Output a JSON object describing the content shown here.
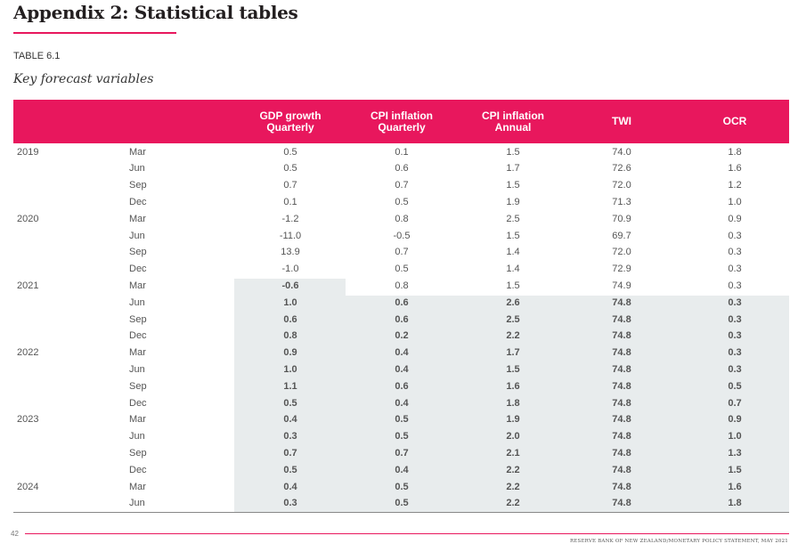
{
  "page": {
    "title": "Appendix 2: Statistical tables",
    "table_label": "TABLE 6.1",
    "table_subtitle": "Key forecast variables",
    "page_number": "42",
    "footer": "RESERVE BANK OF NEW ZEALAND/MONETARY POLICY STATEMENT, MAY 2021"
  },
  "headers": {
    "gdp": "GDP growth\nQuarterly",
    "cpi_q": "CPI inflation\nQuarterly",
    "cpi_a": "CPI inflation\nAnnual",
    "twi": "TWI",
    "ocr": "OCR"
  },
  "rows": [
    {
      "year": "2019",
      "q": "Mar",
      "gdp": "0.5",
      "cpiq": "0.1",
      "cpia": "1.5",
      "twi": "74.0",
      "ocr": "1.8"
    },
    {
      "year": "",
      "q": "Jun",
      "gdp": "0.5",
      "cpiq": "0.6",
      "cpia": "1.7",
      "twi": "72.6",
      "ocr": "1.6"
    },
    {
      "year": "",
      "q": "Sep",
      "gdp": "0.7",
      "cpiq": "0.7",
      "cpia": "1.5",
      "twi": "72.0",
      "ocr": "1.2"
    },
    {
      "year": "",
      "q": "Dec",
      "gdp": "0.1",
      "cpiq": "0.5",
      "cpia": "1.9",
      "twi": "71.3",
      "ocr": "1.0"
    },
    {
      "year": "2020",
      "q": "Mar",
      "gdp": "-1.2",
      "cpiq": "0.8",
      "cpia": "2.5",
      "twi": "70.9",
      "ocr": "0.9"
    },
    {
      "year": "",
      "q": "Jun",
      "gdp": "-11.0",
      "cpiq": "-0.5",
      "cpia": "1.5",
      "twi": "69.7",
      "ocr": "0.3"
    },
    {
      "year": "",
      "q": "Sep",
      "gdp": "13.9",
      "cpiq": "0.7",
      "cpia": "1.4",
      "twi": "72.0",
      "ocr": "0.3"
    },
    {
      "year": "",
      "q": "Dec",
      "gdp": "-1.0",
      "cpiq": "0.5",
      "cpia": "1.4",
      "twi": "72.9",
      "ocr": "0.3"
    },
    {
      "year": "2021",
      "q": "Mar",
      "gdp": "-0.6",
      "cpiq": "0.8",
      "cpia": "1.5",
      "twi": "74.9",
      "ocr": "0.3"
    },
    {
      "year": "",
      "q": "Jun",
      "gdp": "1.0",
      "cpiq": "0.6",
      "cpia": "2.6",
      "twi": "74.8",
      "ocr": "0.3"
    },
    {
      "year": "",
      "q": "Sep",
      "gdp": "0.6",
      "cpiq": "0.6",
      "cpia": "2.5",
      "twi": "74.8",
      "ocr": "0.3"
    },
    {
      "year": "",
      "q": "Dec",
      "gdp": "0.8",
      "cpiq": "0.2",
      "cpia": "2.2",
      "twi": "74.8",
      "ocr": "0.3"
    },
    {
      "year": "2022",
      "q": "Mar",
      "gdp": "0.9",
      "cpiq": "0.4",
      "cpia": "1.7",
      "twi": "74.8",
      "ocr": "0.3"
    },
    {
      "year": "",
      "q": "Jun",
      "gdp": "1.0",
      "cpiq": "0.4",
      "cpia": "1.5",
      "twi": "74.8",
      "ocr": "0.3"
    },
    {
      "year": "",
      "q": "Sep",
      "gdp": "1.1",
      "cpiq": "0.6",
      "cpia": "1.6",
      "twi": "74.8",
      "ocr": "0.5"
    },
    {
      "year": "",
      "q": "Dec",
      "gdp": "0.5",
      "cpiq": "0.4",
      "cpia": "1.8",
      "twi": "74.8",
      "ocr": "0.7"
    },
    {
      "year": "2023",
      "q": "Mar",
      "gdp": "0.4",
      "cpiq": "0.5",
      "cpia": "1.9",
      "twi": "74.8",
      "ocr": "0.9"
    },
    {
      "year": "",
      "q": "Jun",
      "gdp": "0.3",
      "cpiq": "0.5",
      "cpia": "2.0",
      "twi": "74.8",
      "ocr": "1.0"
    },
    {
      "year": "",
      "q": "Sep",
      "gdp": "0.7",
      "cpiq": "0.7",
      "cpia": "2.1",
      "twi": "74.8",
      "ocr": "1.3"
    },
    {
      "year": "",
      "q": "Dec",
      "gdp": "0.5",
      "cpiq": "0.4",
      "cpia": "2.2",
      "twi": "74.8",
      "ocr": "1.5"
    },
    {
      "year": "2024",
      "q": "Mar",
      "gdp": "0.4",
      "cpiq": "0.5",
      "cpia": "2.2",
      "twi": "74.8",
      "ocr": "1.6"
    },
    {
      "year": "",
      "q": "Jun",
      "gdp": "0.3",
      "cpiq": "0.5",
      "cpia": "2.2",
      "twi": "74.8",
      "ocr": "1.8"
    }
  ]
}
